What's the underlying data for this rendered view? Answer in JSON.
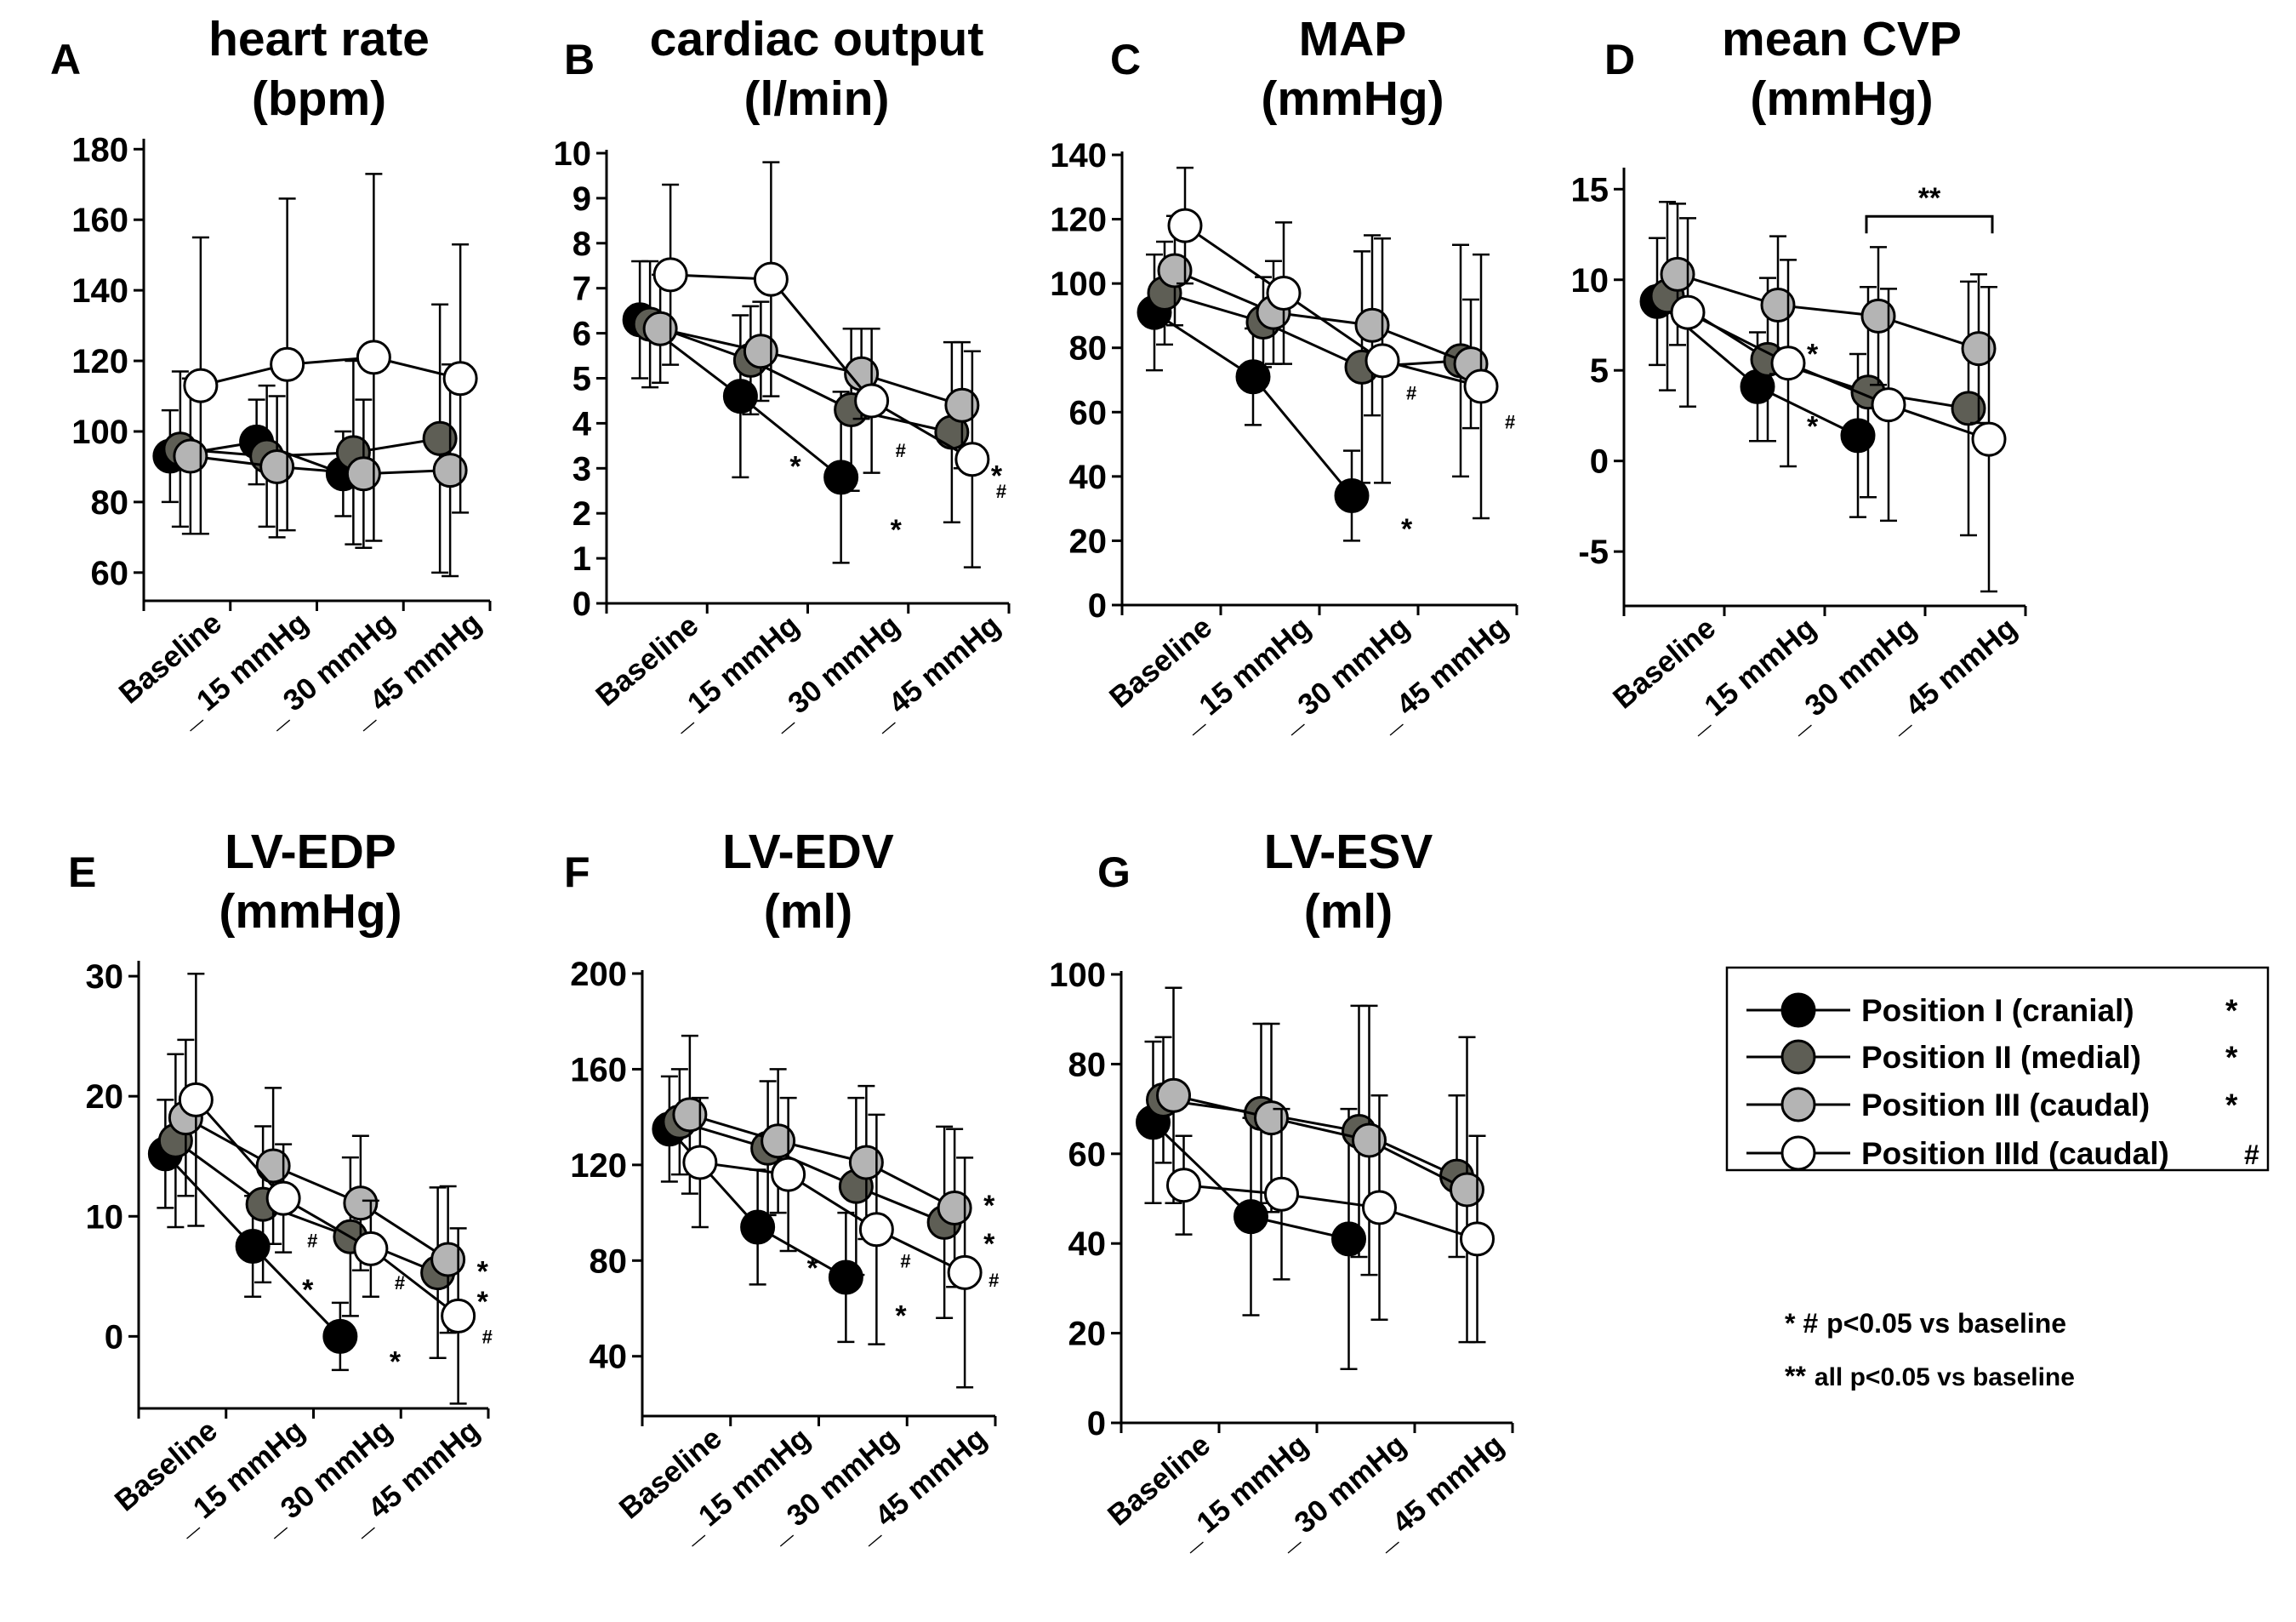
{
  "legend": {
    "items": [
      {
        "label": "Position I (cranial)",
        "marker": "*",
        "fill": "#000000",
        "marker_color": "#000000"
      },
      {
        "label": "Position II (medial)",
        "marker": "*",
        "fill": "#5e5e55",
        "marker_color": "#7d7d70"
      },
      {
        "label": "Position III (caudal)",
        "marker": "*",
        "fill": "#b4b4b4",
        "marker_color": "#b4b4b4"
      },
      {
        "label": "Position IIId (caudal)",
        "marker": "#",
        "fill": "#ffffff",
        "marker_color": "#000000"
      }
    ]
  },
  "notes": {
    "line1_sym": "* #",
    "line1_text": "p<0.05 vs baseline",
    "line2_sym": "**",
    "line2_text": "all p<0.05 vs baseline"
  },
  "chart_data": [
    {
      "type": "line",
      "letter": "A",
      "title_lines": [
        "heart rate",
        "(bpm)"
      ],
      "categories": [
        "Baseline",
        "_ 15 mmHg",
        "_ 30 mmHg",
        "_ 45 mmHg"
      ],
      "yticks": [
        60,
        80,
        100,
        120,
        140,
        160,
        180
      ],
      "ylim": [
        52,
        182
      ],
      "series": [
        {
          "name": "Position I (cranial)",
          "values": [
            93,
            97,
            88,
            null
          ],
          "err": [
            13,
            12,
            12,
            null
          ]
        },
        {
          "name": "Position II (medial)",
          "values": [
            95,
            93,
            94,
            98
          ],
          "err": [
            22,
            20,
            26,
            38
          ]
        },
        {
          "name": "Position III (caudal)",
          "values": [
            93,
            90,
            88,
            89
          ],
          "err": [
            22,
            20,
            21,
            30
          ]
        },
        {
          "name": "Position IIId (caudal)",
          "values": [
            113,
            119,
            121,
            115
          ],
          "err": [
            42,
            47,
            52,
            38
          ]
        }
      ],
      "annotations": [],
      "bracket": null
    },
    {
      "type": "line",
      "letter": "B",
      "title_lines": [
        "cardiac output",
        "(l/min)"
      ],
      "categories": [
        "Baseline",
        "_ 15 mmHg",
        "_ 30 mmHg",
        "_ 45 mmHg"
      ],
      "yticks": [
        0,
        1,
        2,
        3,
        4,
        5,
        6,
        7,
        8,
        9,
        10
      ],
      "ylim": [
        0,
        10
      ],
      "series": [
        {
          "name": "Position I (cranial)",
          "values": [
            6.3,
            4.6,
            2.8,
            null
          ],
          "err": [
            1.3,
            1.8,
            1.9,
            null
          ]
        },
        {
          "name": "Position II (medial)",
          "values": [
            6.2,
            5.4,
            4.3,
            3.8
          ],
          "err": [
            1.4,
            1.2,
            1.8,
            2.0
          ]
        },
        {
          "name": "Position III (caudal)",
          "values": [
            6.1,
            5.6,
            5.1,
            4.4
          ],
          "err": [
            1.2,
            1.1,
            1.0,
            1.4
          ]
        },
        {
          "name": "Position IIId (caudal)",
          "values": [
            7.3,
            7.2,
            4.5,
            3.2
          ],
          "err": [
            2.0,
            2.6,
            1.6,
            2.4
          ]
        }
      ],
      "annotations": [
        {
          "text": "*",
          "cat": 1,
          "y": 3.2,
          "color": "#000000"
        },
        {
          "text": "*",
          "cat": 2,
          "y": 1.8,
          "color": "#000000"
        },
        {
          "text": "#",
          "cat": 2,
          "y": 3.4,
          "color": "#000000"
        },
        {
          "text": "*",
          "cat": 3,
          "y": 3.0,
          "color": "#7d7d70"
        },
        {
          "text": "#",
          "cat": 3,
          "y": 2.5,
          "color": "#000000"
        }
      ],
      "bracket": null
    },
    {
      "type": "line",
      "letter": "C",
      "title_lines": [
        "MAP",
        "(mmHg)"
      ],
      "categories": [
        "Baseline",
        "_ 15 mmHg",
        "_ 30 mmHg",
        "_ 45 mmHg"
      ],
      "yticks": [
        0,
        20,
        40,
        60,
        80,
        100,
        120,
        140
      ],
      "ylim": [
        0,
        140
      ],
      "series": [
        {
          "name": "Position I (cranial)",
          "values": [
            91,
            71,
            34,
            null
          ],
          "err": [
            18,
            15,
            14,
            null
          ]
        },
        {
          "name": "Position II (medial)",
          "values": [
            97,
            88,
            74,
            76
          ],
          "err": [
            16,
            14,
            36,
            36
          ]
        },
        {
          "name": "Position III (caudal)",
          "values": [
            104,
            91,
            87,
            75
          ],
          "err": [
            17,
            16,
            28,
            20
          ]
        },
        {
          "name": "Position IIId (caudal)",
          "values": [
            118,
            97,
            76,
            68
          ],
          "err": [
            18,
            22,
            38,
            41
          ]
        }
      ],
      "annotations": [
        {
          "text": "*",
          "cat": 2,
          "y": 26,
          "color": "#000000"
        },
        {
          "text": "#",
          "cat": 2,
          "y": 66,
          "color": "#000000"
        },
        {
          "text": "#",
          "cat": 3,
          "y": 57,
          "color": "#000000"
        }
      ],
      "bracket": null
    },
    {
      "type": "line",
      "letter": "D",
      "title_lines": [
        "mean CVP",
        "(mmHg)"
      ],
      "categories": [
        "Baseline",
        "_ 15 mmHg",
        "_ 30 mmHg",
        "_ 45 mmHg"
      ],
      "yticks": [
        -5,
        0,
        5,
        10,
        15
      ],
      "ylim": [
        -8,
        16
      ],
      "series": [
        {
          "name": "Position I (cranial)",
          "values": [
            8.8,
            4.1,
            1.4,
            null
          ],
          "err": [
            3.5,
            3.0,
            4.5,
            null
          ]
        },
        {
          "name": "Position II (medial)",
          "values": [
            9.1,
            5.6,
            3.8,
            2.9
          ],
          "err": [
            5.2,
            4.5,
            5.8,
            7.0
          ]
        },
        {
          "name": "Position III (caudal)",
          "values": [
            10.3,
            8.6,
            8.0,
            6.2
          ],
          "err": [
            3.9,
            3.8,
            3.8,
            4.1
          ]
        },
        {
          "name": "Position IIId (caudal)",
          "values": [
            8.2,
            5.4,
            3.1,
            1.2
          ],
          "err": [
            5.2,
            5.7,
            6.4,
            8.4
          ]
        }
      ],
      "annotations": [
        {
          "text": "*",
          "cat": 1,
          "y": 2.3,
          "color": "#000000"
        },
        {
          "text": "*",
          "cat": 1,
          "y": 6.3,
          "color": "#b4b4b4"
        }
      ],
      "bracket": {
        "text": "**",
        "from": 2,
        "to": 3,
        "y": 13.5
      }
    },
    {
      "type": "line",
      "letter": "E",
      "title_lines": [
        "LV-EDP",
        "(mmHg)"
      ],
      "categories": [
        "Baseline",
        "_ 15 mmHg",
        "_ 30 mmHg",
        "_ 45 mmHg"
      ],
      "yticks": [
        0,
        10,
        20,
        30
      ],
      "ylim": [
        -6,
        31
      ],
      "series": [
        {
          "name": "Position I (cranial)",
          "values": [
            15.2,
            7.5,
            0.0,
            null
          ],
          "err": [
            4.5,
            4.2,
            2.8,
            null
          ]
        },
        {
          "name": "Position II (medial)",
          "values": [
            16.3,
            11.0,
            8.3,
            5.3
          ],
          "err": [
            7.2,
            6.5,
            6.6,
            7.1
          ]
        },
        {
          "name": "Position III (caudal)",
          "values": [
            18.2,
            14.2,
            11.1,
            6.4
          ],
          "err": [
            6.5,
            6.5,
            5.6,
            6.1
          ]
        },
        {
          "name": "Position IIId (caudal)",
          "values": [
            19.7,
            11.5,
            7.3,
            1.7
          ],
          "err": [
            10.5,
            4.5,
            4.0,
            7.3
          ]
        }
      ],
      "annotations": [
        {
          "text": "*",
          "cat": 1,
          "y": 4.5,
          "color": "#000000"
        },
        {
          "text": "#",
          "cat": 1,
          "y": 8.0,
          "color": "#000000"
        },
        {
          "text": "*",
          "cat": 2,
          "y": -1.5,
          "color": "#000000"
        },
        {
          "text": "#",
          "cat": 2,
          "y": 4.5,
          "color": "#000000"
        },
        {
          "text": "*",
          "cat": 3,
          "y": 6.0,
          "color": "#b4b4b4"
        },
        {
          "text": "*",
          "cat": 3,
          "y": 3.5,
          "color": "#7d7d70"
        },
        {
          "text": "#",
          "cat": 3,
          "y": 0.0,
          "color": "#000000"
        }
      ],
      "bracket": null
    },
    {
      "type": "line",
      "letter": "F",
      "title_lines": [
        "LV-EDV",
        "(ml)"
      ],
      "categories": [
        "Baseline",
        "_ 15 mmHg",
        "_ 30 mmHg",
        "_ 45 mmHg"
      ],
      "yticks": [
        40,
        80,
        120,
        160,
        200
      ],
      "ylim": [
        15,
        200
      ],
      "series": [
        {
          "name": "Position I (cranial)",
          "values": [
            135,
            94,
            73,
            null
          ],
          "err": [
            22,
            24,
            27,
            null
          ]
        },
        {
          "name": "Position II (medial)",
          "values": [
            138,
            127,
            111,
            96
          ],
          "err": [
            22,
            28,
            37,
            40
          ]
        },
        {
          "name": "Position III (caudal)",
          "values": [
            141,
            130,
            121,
            102
          ],
          "err": [
            33,
            30,
            32,
            33
          ]
        },
        {
          "name": "Position IIId (caudal)",
          "values": [
            121,
            116,
            93,
            75
          ],
          "err": [
            27,
            32,
            48,
            48
          ]
        }
      ],
      "annotations": [
        {
          "text": "*",
          "cat": 1,
          "y": 80,
          "color": "#000000"
        },
        {
          "text": "*",
          "cat": 2,
          "y": 60,
          "color": "#000000"
        },
        {
          "text": "#",
          "cat": 2,
          "y": 80,
          "color": "#000000"
        },
        {
          "text": "*",
          "cat": 3,
          "y": 106,
          "color": "#b4b4b4"
        },
        {
          "text": "*",
          "cat": 3,
          "y": 90,
          "color": "#7d7d70"
        },
        {
          "text": "#",
          "cat": 3,
          "y": 72,
          "color": "#000000"
        }
      ],
      "bracket": null
    },
    {
      "type": "line",
      "letter": "G",
      "title_lines": [
        "LV-ESV",
        "(ml)"
      ],
      "categories": [
        "Baseline",
        "_ 15 mmHg",
        "_ 30 mmHg",
        "_ 45 mmHg"
      ],
      "yticks": [
        0,
        20,
        40,
        60,
        80,
        100
      ],
      "ylim": [
        0,
        100
      ],
      "series": [
        {
          "name": "Position I (cranial)",
          "values": [
            67,
            46,
            41,
            null
          ],
          "err": [
            18,
            22,
            29,
            null
          ]
        },
        {
          "name": "Position II (medial)",
          "values": [
            72,
            69,
            65,
            55
          ],
          "err": [
            14,
            20,
            28,
            18
          ]
        },
        {
          "name": "Position III (caudal)",
          "values": [
            73,
            68,
            63,
            52
          ],
          "err": [
            24,
            21,
            30,
            34
          ]
        },
        {
          "name": "Position IIId (caudal)",
          "values": [
            53,
            51,
            48,
            41
          ],
          "err": [
            11,
            19,
            25,
            23
          ]
        }
      ],
      "annotations": [],
      "bracket": null
    }
  ]
}
